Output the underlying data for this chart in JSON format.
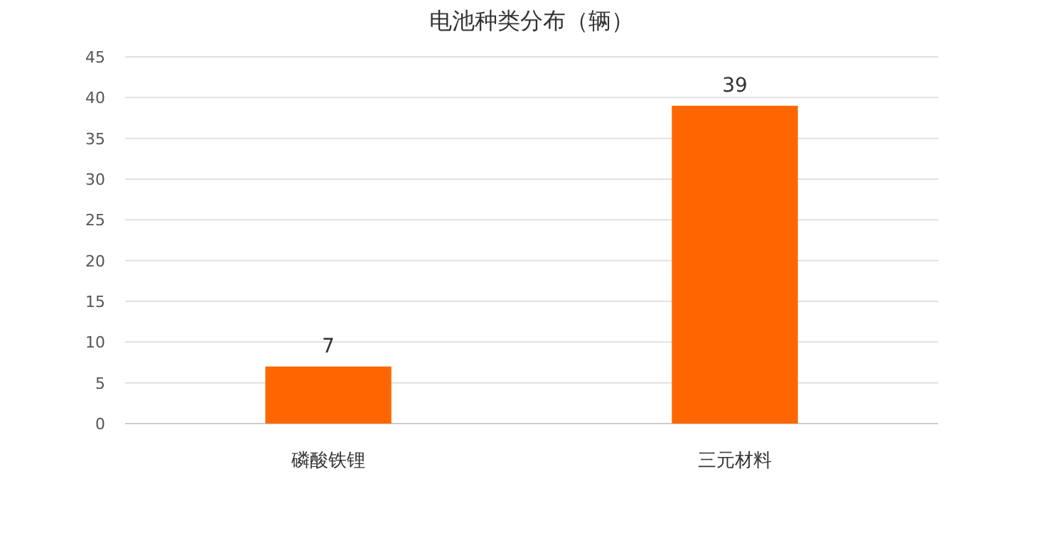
{
  "chart_data": {
    "type": "bar",
    "title": "电池种类分布（辆）",
    "categories": [
      "磷酸铁锂",
      "三元材料"
    ],
    "values": [
      7,
      39
    ],
    "color": "#ff6600",
    "ylim": [
      0,
      45
    ],
    "yticks": [
      0,
      5,
      10,
      15,
      20,
      25,
      30,
      35,
      40,
      45
    ],
    "grid": "y",
    "data_labels": true
  }
}
